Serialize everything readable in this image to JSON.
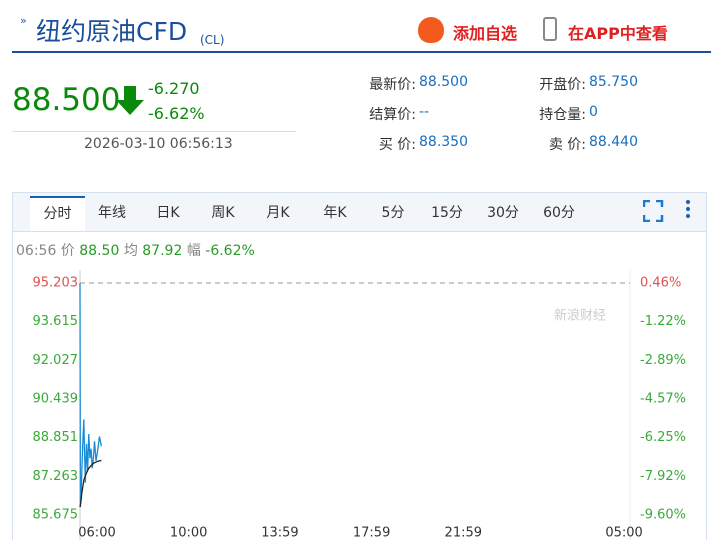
{
  "header": {
    "title": "纽约原油CFD",
    "code": "(CL)",
    "actions": [
      "添加自选",
      "在APP中查看"
    ]
  },
  "quote": {
    "price": "88.500",
    "change": "-6.270",
    "change_pct": "-6.62%",
    "time": "2026-03-10 06:56:13"
  },
  "stats": [
    [
      "最新价:",
      "88.500"
    ],
    [
      "开盘价:",
      "85.750"
    ],
    [
      "结算价:",
      "--"
    ],
    [
      "持仓量:",
      "0"
    ],
    [
      "买 价:",
      "88.350"
    ],
    [
      "卖 价:",
      "88.440"
    ]
  ],
  "tabs": [
    "分时",
    "年线",
    "日K",
    "周K",
    "月K",
    "年K",
    "5分",
    "15分",
    "30分",
    "60分"
  ],
  "info": {
    "time": "06:56",
    "price_label": "价",
    "price": "88.50",
    "avg_label": "均",
    "avg": "87.92",
    "pct_label": "幅",
    "pct": "-6.62%"
  },
  "watermark": "新浪财经",
  "chart_data": {
    "type": "line",
    "x": [
      0,
      1,
      3,
      5,
      8,
      10,
      12,
      14,
      17,
      20,
      23,
      26,
      29,
      32,
      35,
      38,
      42,
      46,
      51,
      56
    ],
    "xlim": [
      0,
      1440
    ],
    "xticks": [
      {
        "value": 0,
        "label": "06:00"
      },
      {
        "value": 240,
        "label": "10:00"
      },
      {
        "value": 479,
        "label": "13:59"
      },
      {
        "value": 719,
        "label": "17:59"
      },
      {
        "value": 959,
        "label": "21:59"
      },
      {
        "value": 1380,
        "label": "05:00"
      }
    ],
    "ylim": [
      85.675,
      95.203
    ],
    "yticks": [
      95.203,
      93.615,
      92.027,
      90.439,
      88.851,
      87.263,
      85.675
    ],
    "y2lim": [
      -9.6,
      0.46
    ],
    "y2ticks": [
      {
        "value": 0.46,
        "label": "0.46%"
      },
      {
        "value": -1.22,
        "label": "-1.22%"
      },
      {
        "value": -2.89,
        "label": "-2.89%"
      },
      {
        "value": -4.57,
        "label": "-4.57%"
      },
      {
        "value": -6.25,
        "label": "-6.25%"
      },
      {
        "value": -7.92,
        "label": "-7.92%"
      },
      {
        "value": -9.6,
        "label": "-9.60%"
      }
    ],
    "series": [
      {
        "color": "#1a8ad4",
        "values": [
          95.203,
          86.0,
          86.5,
          87.6,
          88.9,
          89.6,
          88.2,
          87.0,
          88.6,
          87.5,
          89.0,
          88.0,
          88.4,
          87.6,
          88.0,
          88.7,
          87.9,
          88.3,
          88.9,
          88.5
        ]
      },
      {
        "color": "#222222",
        "values": [
          86.0,
          86.1,
          86.3,
          86.6,
          86.9,
          87.1,
          87.2,
          87.3,
          87.4,
          87.5,
          87.6,
          87.65,
          87.7,
          87.75,
          87.8,
          87.82,
          87.85,
          87.88,
          87.9,
          87.92
        ]
      }
    ]
  }
}
